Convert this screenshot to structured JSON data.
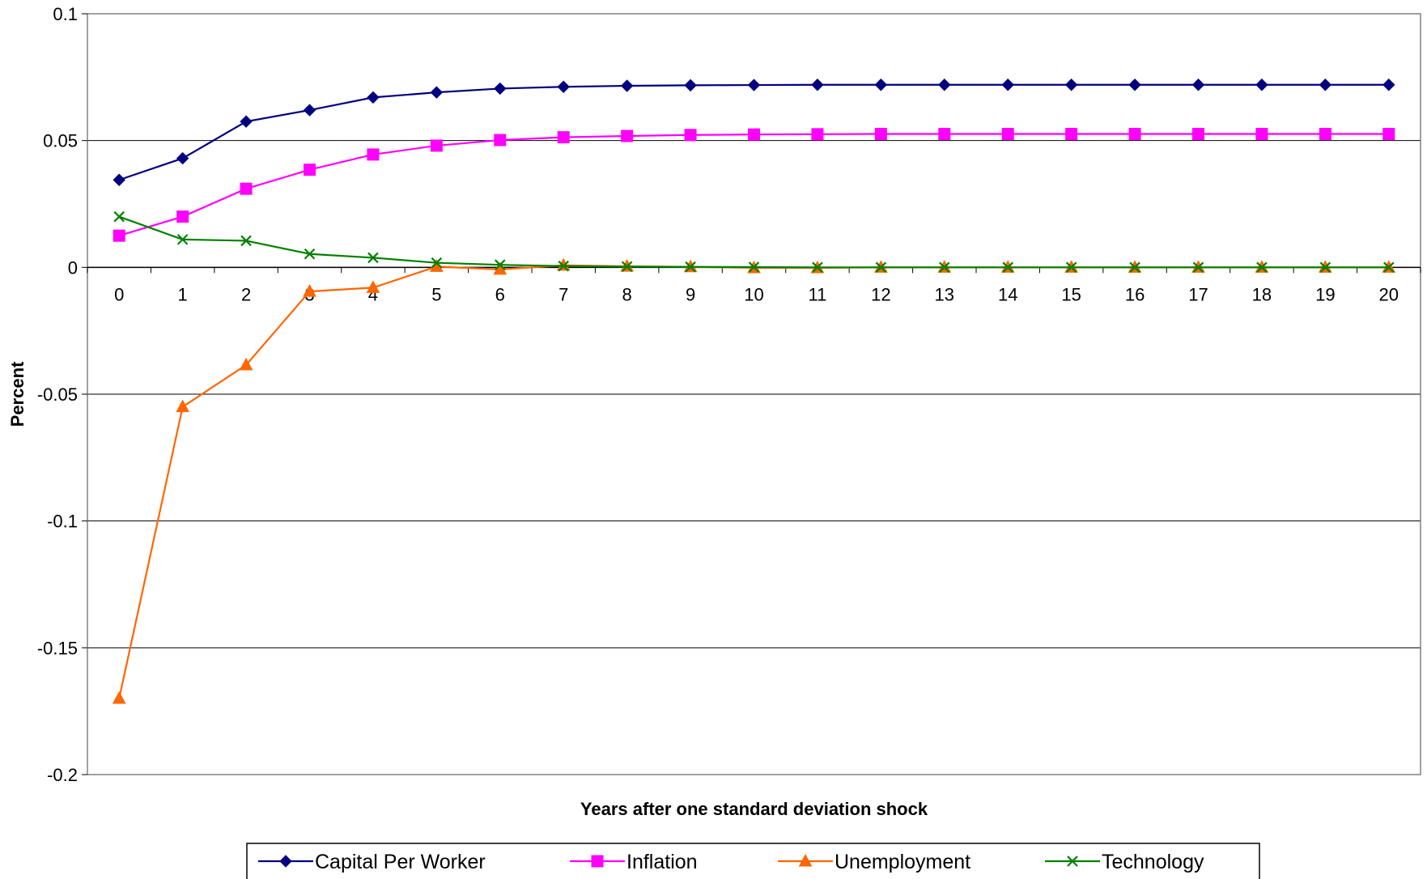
{
  "chart_data": {
    "type": "line",
    "title": "",
    "xlabel": "Years after one standard deviation shock",
    "ylabel": "Percent",
    "x": [
      0,
      1,
      2,
      3,
      4,
      5,
      6,
      7,
      8,
      9,
      10,
      11,
      12,
      13,
      14,
      15,
      16,
      17,
      18,
      19,
      20
    ],
    "x_tick_labels": [
      "0",
      "1",
      "2",
      "3",
      "4",
      "5",
      "6",
      "7",
      "8",
      "9",
      "10",
      "11",
      "12",
      "13",
      "14",
      "15",
      "16",
      "17",
      "18",
      "19",
      "20"
    ],
    "ylim": [
      -0.2,
      0.1
    ],
    "y_ticks": [
      0.1,
      0.05,
      0,
      -0.05,
      -0.1,
      -0.15,
      -0.2
    ],
    "y_tick_labels": [
      "0.1",
      "0.05",
      "0",
      "-0.05",
      "-0.1",
      "-0.15",
      "-0.2"
    ],
    "grid": "horizontal",
    "legend_position": "bottom",
    "series": [
      {
        "name": "Capital Per Worker",
        "color": "#000080",
        "marker": "diamond",
        "values": [
          0.0345,
          0.043,
          0.0575,
          0.062,
          0.067,
          0.069,
          0.0705,
          0.0712,
          0.0716,
          0.0718,
          0.0719,
          0.072,
          0.072,
          0.072,
          0.072,
          0.072,
          0.072,
          0.072,
          0.072,
          0.072,
          0.072
        ]
      },
      {
        "name": "Inflation",
        "color": "#FF00FF",
        "marker": "square",
        "values": [
          0.0125,
          0.02,
          0.031,
          0.0385,
          0.0445,
          0.048,
          0.0502,
          0.0513,
          0.0518,
          0.0522,
          0.0524,
          0.0525,
          0.0526,
          0.0526,
          0.0526,
          0.0526,
          0.0526,
          0.0526,
          0.0526,
          0.0526,
          0.0526
        ]
      },
      {
        "name": "Unemployment",
        "color": "#FF6600",
        "marker": "triangle",
        "values": [
          -0.17,
          -0.055,
          -0.0385,
          -0.0095,
          -0.008,
          0.0003,
          -0.0008,
          0.0008,
          0.0004,
          0.0002,
          -0.0002,
          -0.0002,
          0.0,
          0.0,
          0.0,
          0.0,
          0.0,
          0.0,
          0.0,
          0.0,
          0.0
        ]
      },
      {
        "name": "Technology",
        "color": "#008000",
        "marker": "x",
        "values": [
          0.02,
          0.011,
          0.0105,
          0.0053,
          0.0038,
          0.0018,
          0.001,
          0.0005,
          0.0003,
          0.0002,
          0.0001,
          0.0,
          0.0,
          0.0,
          0.0,
          0.0,
          0.0,
          0.0,
          0.0,
          0.0,
          0.0
        ]
      }
    ]
  }
}
